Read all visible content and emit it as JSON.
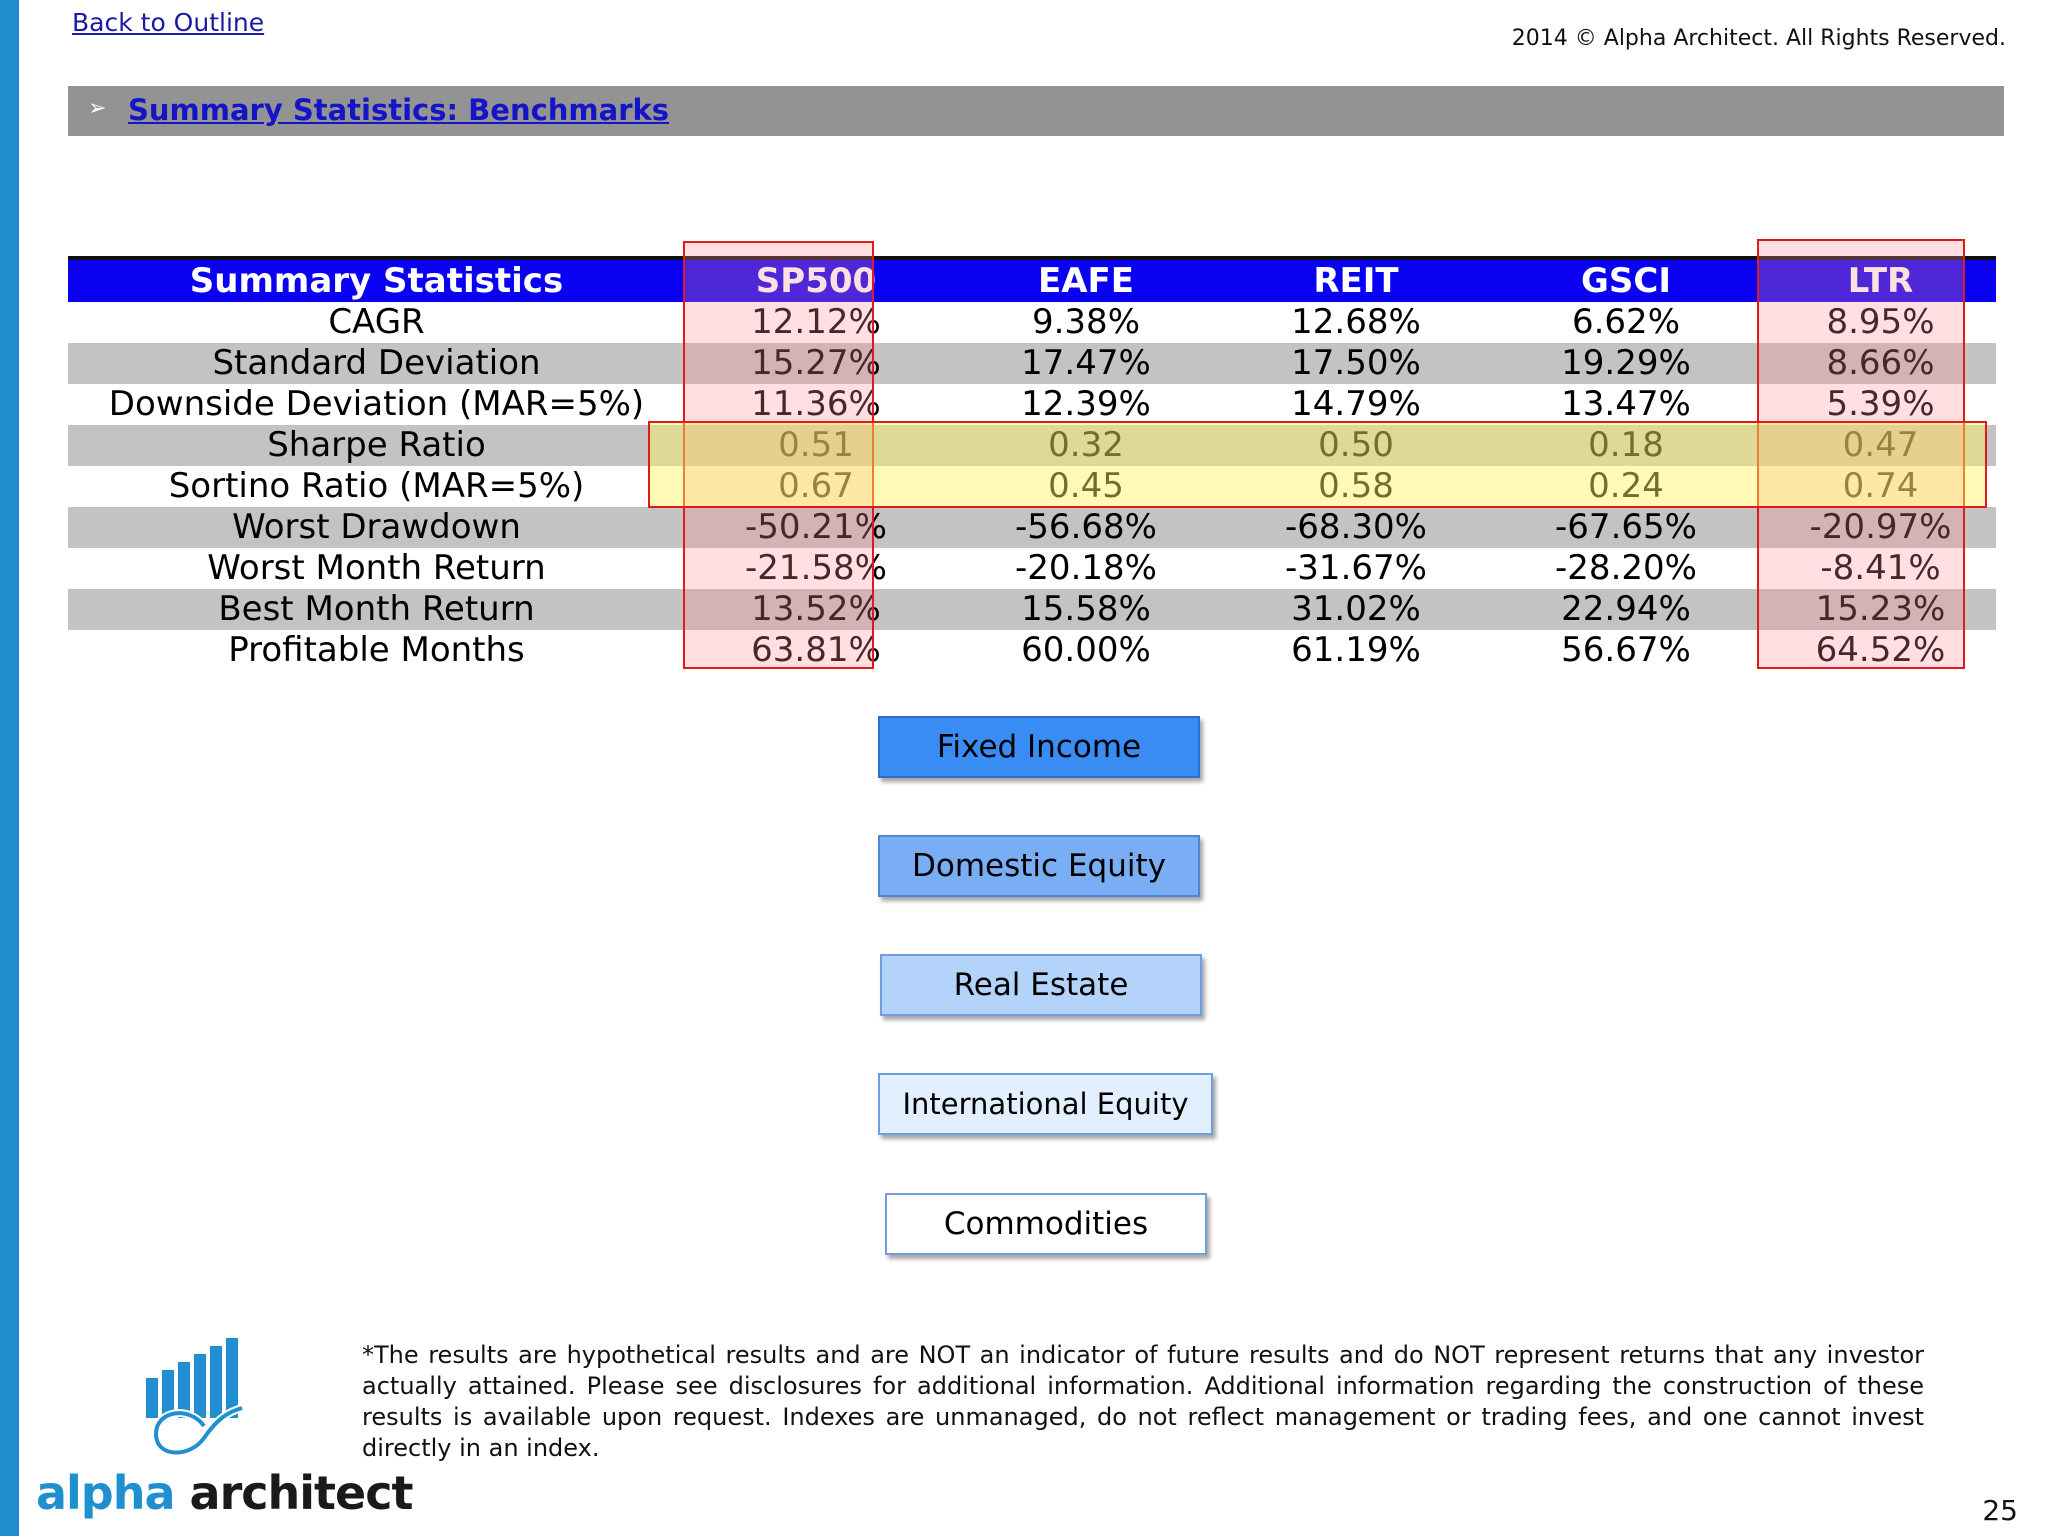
{
  "header": {
    "back_link": "Back to Outline",
    "copyright": "2014 © Alpha Architect. All Rights Reserved."
  },
  "section": {
    "arrow": "➢",
    "title": "Summary Statistics: Benchmarks"
  },
  "table": {
    "columns": [
      "Summary Statistics",
      "SP500",
      "EAFE",
      "REIT",
      "GSCI",
      "LTR"
    ],
    "rows": [
      {
        "label": "CAGR",
        "values": [
          "12.12%",
          "9.38%",
          "12.68%",
          "6.62%",
          "8.95%"
        ]
      },
      {
        "label": "Standard Deviation",
        "values": [
          "15.27%",
          "17.47%",
          "17.50%",
          "19.29%",
          "8.66%"
        ]
      },
      {
        "label": "Downside Deviation (MAR=5%)",
        "values": [
          "11.36%",
          "12.39%",
          "14.79%",
          "13.47%",
          "5.39%"
        ]
      },
      {
        "label": "Sharpe Ratio",
        "values": [
          "0.51",
          "0.32",
          "0.50",
          "0.18",
          "0.47"
        ]
      },
      {
        "label": "Sortino Ratio (MAR=5%)",
        "values": [
          "0.67",
          "0.45",
          "0.58",
          "0.24",
          "0.74"
        ]
      },
      {
        "label": "Worst Drawdown",
        "values": [
          "-50.21%",
          "-56.68%",
          "-68.30%",
          "-67.65%",
          "-20.97%"
        ]
      },
      {
        "label": "Worst Month Return",
        "values": [
          "-21.58%",
          "-20.18%",
          "-31.67%",
          "-28.20%",
          "-8.41%"
        ]
      },
      {
        "label": "Best Month Return",
        "values": [
          "13.52%",
          "15.58%",
          "31.02%",
          "22.94%",
          "15.23%"
        ]
      },
      {
        "label": "Profitable Months",
        "values": [
          "63.81%",
          "60.00%",
          "61.19%",
          "56.67%",
          "64.52%"
        ]
      }
    ]
  },
  "buttons": {
    "fixed_income": "Fixed Income",
    "domestic_equity": "Domestic Equity",
    "real_estate": "Real Estate",
    "international_equity": "International Equity",
    "commodities": "Commodities"
  },
  "disclaimer": "*The results are hypothetical results and are NOT an indicator of future results and do NOT represent returns that any investor actually attained. Please see disclosures for additional information. Additional information regarding the construction of these results is available upon request. Indexes are unmanaged, do not reflect management or trading fees, and one cannot invest directly in an index.",
  "logo": {
    "part1": "alpha",
    "part2": " architect"
  },
  "page_number": "25",
  "colors": {
    "accent_blue": "#1f8fd0",
    "header_blue": "#0a00f2",
    "highlight_red": "#e01a1a",
    "highlight_yellow": "#fff55a"
  }
}
